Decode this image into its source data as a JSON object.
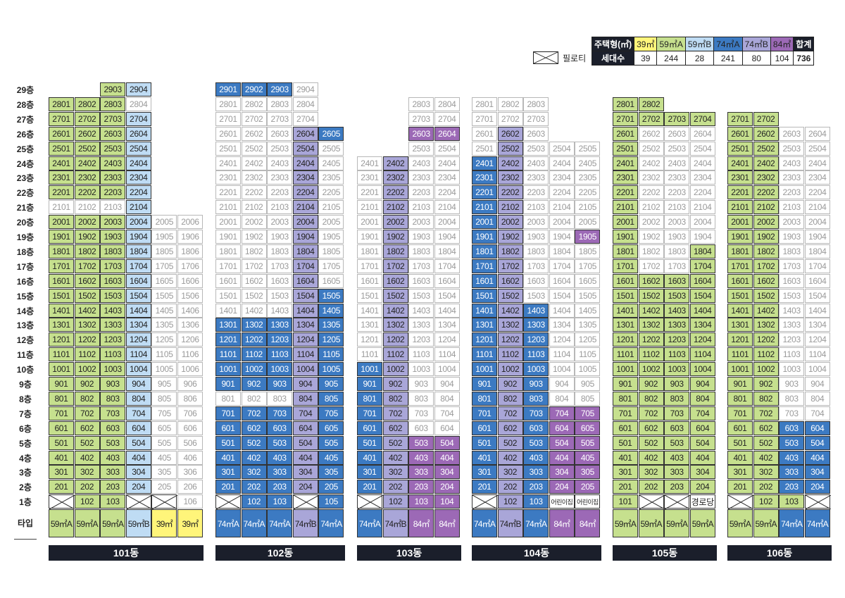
{
  "legend": {
    "row1_label": "주택형(㎡)",
    "row2_label": "세대수",
    "types": [
      {
        "label": "39㎡",
        "count": "39",
        "color": "#fff57a"
      },
      {
        "label": "59㎡A",
        "count": "244",
        "color": "#c6e08e"
      },
      {
        "label": "59㎡B",
        "count": "28",
        "color": "#bfdcf4"
      },
      {
        "label": "74㎡A",
        "count": "241",
        "color": "#3c7ac2"
      },
      {
        "label": "74㎡B",
        "count": "80",
        "color": "#a9a6d8"
      },
      {
        "label": "84㎡",
        "count": "104",
        "color": "#9c69b6"
      }
    ],
    "total_label": "합계",
    "total_count": "736",
    "pilotis_label": "필로티"
  },
  "colors": {
    "Y": "#fff57a",
    "G": "#c6e08e",
    "L": "#bfdcf4",
    "B": "#3c7ac2",
    "V": "#a9a6d8",
    "P": "#9c69b6",
    "dark": "#1b1f2b"
  },
  "floor_labels": [
    "29층",
    "28층",
    "27층",
    "26층",
    "25층",
    "24층",
    "23층",
    "22층",
    "21층",
    "20층",
    "19층",
    "18층",
    "17층",
    "16층",
    "15층",
    "14층",
    "13층",
    "12층",
    "11층",
    "10층",
    "9층",
    "8층",
    "7층",
    "6층",
    "5층",
    "4층",
    "3층",
    "2층",
    "1층"
  ],
  "type_row_label": "타입",
  "buildings": [
    {
      "name": "101동",
      "x": 69,
      "cols": 6,
      "bands": [
        {
          "top": 29,
          "cols": [
            "",
            "",
            "G",
            "L",
            "",
            ""
          ]
        },
        {
          "top": 28,
          "cols": [
            "G",
            "G",
            "G",
            "O",
            "",
            ""
          ]
        },
        {
          "top": 27,
          "cols": [
            "G",
            "G",
            "G",
            "L",
            "",
            ""
          ]
        },
        {
          "top": 26,
          "cols": [
            "G",
            "G",
            "G",
            "L",
            "",
            ""
          ]
        },
        {
          "top": 25,
          "cols": [
            "G",
            "G",
            "G",
            "L",
            "",
            ""
          ]
        },
        {
          "top": 24,
          "cols": [
            "G",
            "G",
            "G",
            "L",
            "",
            ""
          ]
        },
        {
          "top": 23,
          "cols": [
            "G",
            "G",
            "G",
            "L",
            "",
            ""
          ]
        },
        {
          "top": 22,
          "cols": [
            "G",
            "G",
            "G",
            "L",
            "",
            ""
          ]
        },
        {
          "top": 21,
          "cols": [
            "O",
            "O",
            "O",
            "L",
            "",
            ""
          ]
        },
        {
          "top": 20,
          "cols": [
            "G",
            "G",
            "G",
            "L",
            "O",
            "O"
          ]
        },
        {
          "top": 8,
          "cols": [
            "G",
            "G",
            "G",
            "L",
            "O",
            "O"
          ]
        },
        {
          "top": 2,
          "cols": [
            "G",
            "G",
            "G",
            "L",
            "O",
            "O"
          ]
        }
      ],
      "first": [
        "X",
        "102",
        "103",
        "X",
        "X",
        "106"
      ],
      "first_style": [
        "pil",
        "G",
        "G",
        "pil",
        "pilY",
        "O"
      ],
      "types": [
        [
          "59㎡A",
          "G"
        ],
        [
          "59㎡A",
          "G"
        ],
        [
          "59㎡A",
          "G"
        ],
        [
          "59㎡B",
          "L"
        ],
        [
          "39㎡",
          "Y"
        ],
        [
          "39㎡",
          "Y"
        ]
      ]
    },
    {
      "name": "102동",
      "x": 306,
      "cols": 5,
      "bands": [
        {
          "top": 29,
          "cols": [
            "B",
            "B",
            "B",
            "O",
            ""
          ]
        },
        {
          "top": 28,
          "cols": [
            "O",
            "O",
            "O",
            "O",
            ""
          ]
        },
        {
          "top": 27,
          "cols": [
            "O",
            "O",
            "O",
            "O",
            ""
          ]
        },
        {
          "top": 26,
          "cols": [
            "O",
            "O",
            "O",
            "V",
            "B"
          ]
        },
        {
          "top": 25,
          "cols": [
            "O",
            "O",
            "O",
            "V",
            "O"
          ]
        },
        {
          "top": 16,
          "cols": [
            "O",
            "O",
            "O",
            "V",
            "O"
          ]
        },
        {
          "top": 15,
          "cols": [
            "O",
            "O",
            "O",
            "V",
            "B"
          ]
        },
        {
          "top": 14,
          "cols": [
            "O",
            "O",
            "O",
            "V",
            "B"
          ]
        },
        {
          "top": 13,
          "cols": [
            "B",
            "B",
            "B",
            "V",
            "B"
          ]
        },
        {
          "top": 9,
          "cols": [
            "B",
            "B",
            "B",
            "V",
            "B"
          ]
        },
        {
          "top": 8,
          "cols": [
            "O",
            "O",
            "O",
            "V",
            "B"
          ]
        },
        {
          "top": 7,
          "cols": [
            "B",
            "B",
            "B",
            "V",
            "B"
          ]
        },
        {
          "top": 2,
          "cols": [
            "B",
            "B",
            "B",
            "V",
            "B"
          ]
        }
      ],
      "first": [
        "X",
        "102",
        "103",
        "X",
        "105"
      ],
      "first_style": [
        "pil",
        "B",
        "B",
        "pil",
        "B"
      ],
      "types": [
        [
          "74㎡A",
          "B"
        ],
        [
          "74㎡A",
          "B"
        ],
        [
          "74㎡A",
          "B"
        ],
        [
          "74㎡B",
          "V"
        ],
        [
          "74㎡A",
          "B"
        ]
      ]
    },
    {
      "name": "103동",
      "x": 507,
      "cols": 4,
      "bands": [
        {
          "top": 28,
          "cols": [
            "",
            "",
            "O",
            "O"
          ]
        },
        {
          "top": 27,
          "cols": [
            "",
            "",
            "O",
            "O"
          ]
        },
        {
          "top": 26,
          "cols": [
            "",
            "",
            "P",
            "P"
          ]
        },
        {
          "top": 25,
          "cols": [
            "",
            "",
            "O",
            "O"
          ]
        },
        {
          "top": 24,
          "cols": [
            "O",
            "V",
            "O",
            "O"
          ]
        },
        {
          "top": 11,
          "cols": [
            "O",
            "V",
            "O",
            "O"
          ]
        },
        {
          "top": 10,
          "cols": [
            "B",
            "V",
            "O",
            "O"
          ]
        },
        {
          "top": 9,
          "cols": [
            "B",
            "V",
            "O",
            "O"
          ]
        },
        {
          "top": 8,
          "cols": [
            "B",
            "V",
            "O",
            "O"
          ]
        },
        {
          "top": 7,
          "cols": [
            "B",
            "V",
            "O",
            "O"
          ]
        },
        {
          "top": 6,
          "cols": [
            "B",
            "V",
            "O",
            "O"
          ]
        },
        {
          "top": 5,
          "cols": [
            "B",
            "V",
            "P",
            "P"
          ]
        },
        {
          "top": 2,
          "cols": [
            "B",
            "V",
            "P",
            "P"
          ]
        }
      ],
      "first": [
        "X",
        "102",
        "103",
        "104"
      ],
      "first_style": [
        "pil",
        "V",
        "P",
        "P"
      ],
      "types": [
        [
          "74㎡A",
          "B"
        ],
        [
          "74㎡B",
          "V"
        ],
        [
          "84㎡",
          "P"
        ],
        [
          "84㎡",
          "P"
        ]
      ]
    },
    {
      "name": "104동",
      "x": 670,
      "cols": 5,
      "bands": [
        {
          "top": 28,
          "cols": [
            "O",
            "O",
            "O",
            "",
            ""
          ]
        },
        {
          "top": 27,
          "cols": [
            "O",
            "O",
            "O",
            "",
            ""
          ]
        },
        {
          "top": 26,
          "cols": [
            "O",
            "V",
            "O",
            "",
            ""
          ]
        },
        {
          "top": 25,
          "cols": [
            "O",
            "V",
            "O",
            "O",
            "O"
          ]
        },
        {
          "top": 24,
          "cols": [
            "B",
            "V",
            "O",
            "O",
            "O"
          ]
        },
        {
          "top": 20,
          "cols": [
            "B",
            "V",
            "O",
            "O",
            "O"
          ]
        },
        {
          "top": 19,
          "cols": [
            "B",
            "V",
            "O",
            "O",
            "P"
          ]
        },
        {
          "top": 18,
          "cols": [
            "B",
            "V",
            "O",
            "O",
            "O"
          ]
        },
        {
          "top": 15,
          "cols": [
            "B",
            "V",
            "O",
            "O",
            "O"
          ]
        },
        {
          "top": 14,
          "cols": [
            "B",
            "V",
            "B",
            "O",
            "O"
          ]
        },
        {
          "top": 8,
          "cols": [
            "B",
            "V",
            "B",
            "O",
            "O"
          ]
        },
        {
          "top": 7,
          "cols": [
            "B",
            "V",
            "B",
            "P",
            "P"
          ]
        },
        {
          "top": 2,
          "cols": [
            "B",
            "V",
            "B",
            "P",
            "P"
          ]
        }
      ],
      "first": [
        "X",
        "102",
        "103",
        "어린이집",
        "어린이집"
      ],
      "first_style": [
        "pil",
        "V",
        "B",
        "small",
        "small"
      ],
      "types": [
        [
          "74㎡A",
          "B"
        ],
        [
          "74㎡B",
          "V"
        ],
        [
          "74㎡A",
          "B"
        ],
        [
          "84㎡",
          "P"
        ],
        [
          "84㎡",
          "P"
        ]
      ]
    },
    {
      "name": "105동",
      "x": 870,
      "cols": 4,
      "bands": [
        {
          "top": 28,
          "cols": [
            "G",
            "G",
            "",
            ""
          ]
        },
        {
          "top": 27,
          "cols": [
            "G",
            "G",
            "G",
            "G"
          ]
        },
        {
          "top": 26,
          "cols": [
            "G",
            "O",
            "O",
            "O"
          ]
        },
        {
          "top": 19,
          "cols": [
            "G",
            "O",
            "O",
            "O"
          ]
        },
        {
          "top": 18,
          "cols": [
            "G",
            "O",
            "O",
            "G"
          ]
        },
        {
          "top": 16,
          "cols": [
            "G",
            "G",
            "G",
            "G"
          ]
        },
        {
          "top": 2,
          "cols": [
            "G",
            "G",
            "G",
            "G"
          ]
        }
      ],
      "first": [
        "101",
        "X",
        "X",
        "경로당"
      ],
      "first_style": [
        "G",
        "pil",
        "pil",
        "txt"
      ],
      "types": [
        [
          "59㎡A",
          "G"
        ],
        [
          "59㎡A",
          "G"
        ],
        [
          "59㎡A",
          "G"
        ],
        [
          "59㎡A",
          "G"
        ]
      ]
    },
    {
      "name": "106동",
      "x": 1033,
      "cols": 4,
      "bands": [
        {
          "top": 27,
          "cols": [
            "G",
            "G",
            "",
            ""
          ]
        },
        {
          "top": 26,
          "cols": [
            "G",
            "G",
            "O",
            "O"
          ]
        },
        {
          "top": 7,
          "cols": [
            "G",
            "G",
            "O",
            "O"
          ]
        },
        {
          "top": 6,
          "cols": [
            "G",
            "G",
            "B",
            "B"
          ]
        },
        {
          "top": 2,
          "cols": [
            "G",
            "G",
            "B",
            "B"
          ]
        }
      ],
      "first": [
        "X",
        "102",
        "103",
        "X"
      ],
      "first_style": [
        "pil",
        "G",
        "G",
        "pil"
      ],
      "types": [
        [
          "59㎡A",
          "G"
        ],
        [
          "59㎡A",
          "G"
        ],
        [
          "74㎡A",
          "B"
        ],
        [
          "74㎡A",
          "B"
        ]
      ]
    }
  ]
}
